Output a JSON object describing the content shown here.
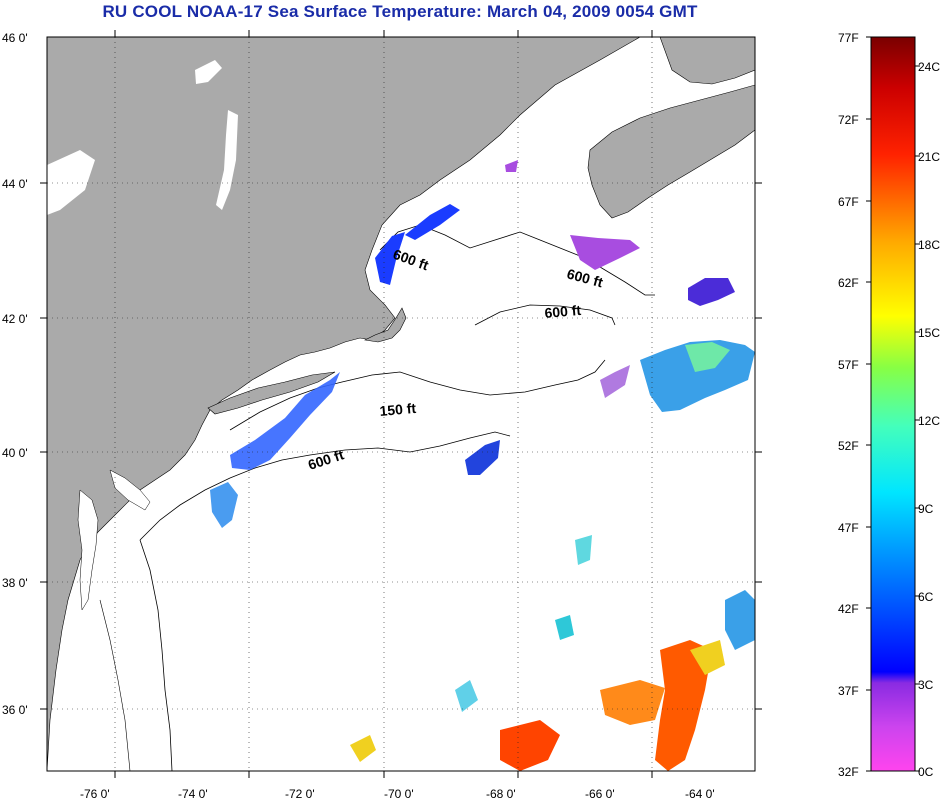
{
  "title": "RU COOL  NOAA-17  Sea Surface Temperature:  March 04, 2009 0054 GMT",
  "map": {
    "lon_ticks": [
      "-76 0'",
      "-74 0'",
      "-72 0'",
      "-70 0'",
      "-68 0'",
      "-66 0'",
      "-64 0'"
    ],
    "lat_ticks": [
      "46 0'",
      "44 0'",
      "42 0'",
      "40 0'",
      "38 0'",
      "36 0'"
    ],
    "contour_labels": [
      "600 ft",
      "600 ft",
      "600 ft",
      "150 ft",
      "600 ft"
    ],
    "land_color": "#aaaaaa",
    "water_color": "#ffffff"
  },
  "colorbar": {
    "fahrenheit": [
      "77F",
      "72F",
      "67F",
      "62F",
      "57F",
      "52F",
      "47F",
      "42F",
      "37F",
      "32F"
    ],
    "celsius": [
      "24C",
      "21C",
      "18C",
      "15C",
      "12C",
      "9C",
      "6C",
      "3C",
      "0C"
    ],
    "colors": [
      "#ff44ee",
      "#8a2be2",
      "#0000ff",
      "#0088ff",
      "#00e6ff",
      "#44ff88",
      "#ffff00",
      "#ff9900",
      "#ff0000",
      "#7a0000"
    ]
  }
}
